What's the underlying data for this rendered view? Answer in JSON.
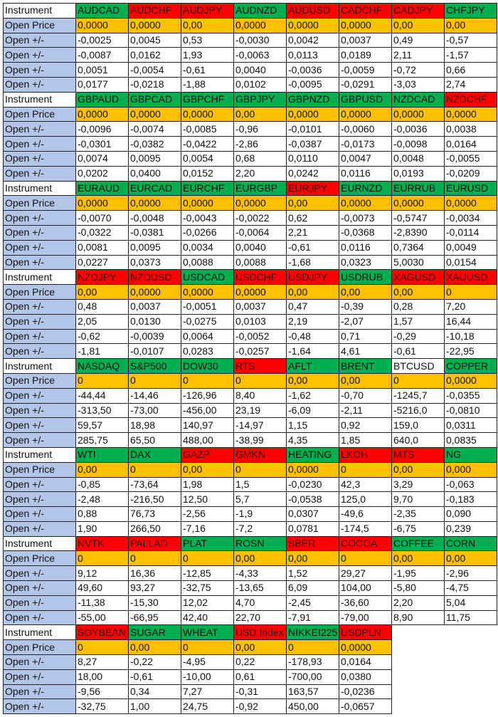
{
  "labels": {
    "instrument": "Instrument",
    "open_price": "Open Price",
    "change": "Open +/-"
  },
  "colors": {
    "green": "#00b050",
    "red": "#ff0000",
    "white": "#ffffff",
    "open_price_bg": "#ffc000",
    "label_bg": "#b4c6e7"
  },
  "sections": [
    {
      "instruments": [
        {
          "name": "AUDCAD",
          "status": "g",
          "open": "0,0000",
          "changes": [
            "-0,0025",
            "-0,0087",
            "0,0051",
            "0,0177"
          ]
        },
        {
          "name": "AUDCHF",
          "status": "r",
          "open": "0,0000",
          "changes": [
            "0,0045",
            "0,0162",
            "-0,0054",
            "-0,0218"
          ]
        },
        {
          "name": "AUDJPY",
          "status": "r",
          "open": "0,00",
          "changes": [
            "0,53",
            "1,93",
            "-0,61",
            "-1,88"
          ]
        },
        {
          "name": "AUDNZD",
          "status": "g",
          "open": "0,0000",
          "changes": [
            "-0,0030",
            "-0,0063",
            "0,0040",
            "0,0102"
          ]
        },
        {
          "name": "AUDUSD",
          "status": "r",
          "open": "0,0000",
          "changes": [
            "0,0042",
            "0,0113",
            "-0,0036",
            "-0,0095"
          ]
        },
        {
          "name": "CADCHF",
          "status": "r",
          "open": "0,0000",
          "changes": [
            "0,0037",
            "0,0189",
            "-0,0059",
            "-0,0291"
          ]
        },
        {
          "name": "CADJPY",
          "status": "r",
          "open": "0,00",
          "changes": [
            "0,49",
            "2,11",
            "-0,72",
            "-3,03"
          ]
        },
        {
          "name": "CHFJPY",
          "status": "g",
          "open": "0,00",
          "changes": [
            "-0,57",
            "-1,57",
            "0,66",
            "2,74"
          ]
        }
      ]
    },
    {
      "instruments": [
        {
          "name": "GBPAUD",
          "status": "g",
          "open": "0,0000",
          "changes": [
            "-0,0096",
            "-0,0301",
            "0,0074",
            "0,0202"
          ]
        },
        {
          "name": "GBPCAD",
          "status": "g",
          "open": "0,0000",
          "changes": [
            "-0,0074",
            "-0,0382",
            "0,0095",
            "0,0400"
          ]
        },
        {
          "name": "GBPCHF",
          "status": "g",
          "open": "0,0000",
          "changes": [
            "-0,0085",
            "-0,0422",
            "0,0054",
            "0,0152"
          ]
        },
        {
          "name": "GBPJPY",
          "status": "g",
          "open": "0,00",
          "changes": [
            "-0,96",
            "-2,86",
            "0,68",
            "2,20"
          ]
        },
        {
          "name": "GBPNZD",
          "status": "g",
          "open": "0,0000",
          "changes": [
            "-0,0101",
            "-0,0387",
            "0,0110",
            "0,0242"
          ]
        },
        {
          "name": "GBPUSD",
          "status": "g",
          "open": "0,0000",
          "changes": [
            "-0,0060",
            "-0,0173",
            "0,0047",
            "0,0116"
          ]
        },
        {
          "name": "NZDCAD",
          "status": "g",
          "open": "0,0000",
          "changes": [
            "-0,0036",
            "-0,0098",
            "0,0048",
            "0,0193"
          ]
        },
        {
          "name": "NZDCHF",
          "status": "r",
          "open": "0,0000",
          "changes": [
            "0,0038",
            "0,0164",
            "-0,0055",
            "-0,0209"
          ]
        }
      ]
    },
    {
      "instruments": [
        {
          "name": "EURAUD",
          "status": "g",
          "open": "0,0000",
          "changes": [
            "-0,0070",
            "-0,0322",
            "0,0081",
            "0,0227"
          ]
        },
        {
          "name": "EURCAD",
          "status": "g",
          "open": "0,0000",
          "changes": [
            "-0,0048",
            "-0,0381",
            "0,0095",
            "0,0373"
          ]
        },
        {
          "name": "EURCHF",
          "status": "g",
          "open": "0,0000",
          "changes": [
            "-0,0043",
            "-0,0266",
            "0,0034",
            "0,0088"
          ]
        },
        {
          "name": "EURGBP",
          "status": "g",
          "open": "0,0000",
          "changes": [
            "-0,0022",
            "-0,0064",
            "0,0040",
            "0,0088"
          ]
        },
        {
          "name": "EURJPY",
          "status": "r",
          "open": "0,00",
          "changes": [
            "0,62",
            "2,21",
            "-0,61",
            "-1,68"
          ]
        },
        {
          "name": "EURNZD",
          "status": "g",
          "open": "0,0000",
          "changes": [
            "-0,0073",
            "-0,0368",
            "0,0116",
            "0,0323"
          ]
        },
        {
          "name": "EURRUB",
          "status": "g",
          "open": "0,0000",
          "changes": [
            "-0,5747",
            "-2,8390",
            "0,7364",
            "5,0030"
          ]
        },
        {
          "name": "EURUSD",
          "status": "g",
          "open": "0,0000",
          "changes": [
            "-0,0034",
            "-0,0114",
            "0,0049",
            "0,0154"
          ]
        }
      ]
    },
    {
      "instruments": [
        {
          "name": "NZDJPY",
          "status": "r",
          "open": "0,00",
          "changes": [
            "0,48",
            "2,05",
            "-0,62",
            "-1,81"
          ]
        },
        {
          "name": "NZDUSD",
          "status": "r",
          "open": "0,0000",
          "changes": [
            "0,0037",
            "0,0130",
            "-0,0039",
            "-0,0107"
          ]
        },
        {
          "name": "USDCAD",
          "status": "g",
          "open": "0,0000",
          "changes": [
            "-0,0051",
            "-0,0275",
            "0,0064",
            "0,0283"
          ]
        },
        {
          "name": "USDCHF",
          "status": "r",
          "open": "0,0000",
          "changes": [
            "0,0037",
            "0,0103",
            "-0,0052",
            "-0,0257"
          ]
        },
        {
          "name": "USDJPY",
          "status": "r",
          "open": "0,00",
          "changes": [
            "0,47",
            "2,19",
            "-0,48",
            "-1,64"
          ]
        },
        {
          "name": "USDRUB",
          "status": "g",
          "open": "0,00",
          "changes": [
            "-0,39",
            "-2,07",
            "0,71",
            "4,61"
          ]
        },
        {
          "name": "XAGUSD",
          "status": "r",
          "open": "0,00",
          "changes": [
            "0,28",
            "1,57",
            "-0,29",
            "-0,61"
          ]
        },
        {
          "name": "XAUUSD",
          "status": "r",
          "open": "0",
          "changes": [
            "7,20",
            "16,44",
            "-10,18",
            "-22,95"
          ]
        }
      ]
    },
    {
      "instruments": [
        {
          "name": "NASDAQ",
          "status": "g",
          "open": "0",
          "changes": [
            "-44,44",
            "-313,50",
            "59,57",
            "285,75"
          ]
        },
        {
          "name": "S&P500",
          "status": "g",
          "open": "0",
          "changes": [
            "-14,46",
            "-73,00",
            "18,98",
            "65,50"
          ]
        },
        {
          "name": "DOW30",
          "status": "g",
          "open": "0",
          "changes": [
            "-126,96",
            "-456,00",
            "140,97",
            "488,00"
          ]
        },
        {
          "name": "RTS",
          "status": "r",
          "open": "0",
          "changes": [
            "8,40",
            "23,19",
            "-14,97",
            "-38,99"
          ]
        },
        {
          "name": "AFLT",
          "status": "g",
          "open": "0,00",
          "changes": [
            "-1,62",
            "-6,09",
            "1,15",
            "4,35"
          ]
        },
        {
          "name": "BRENT",
          "status": "g",
          "open": "0,00",
          "changes": [
            "-0,70",
            "-2,11",
            "0,92",
            "1,85"
          ]
        },
        {
          "name": "BTCUSD",
          "status": "w",
          "open": "0",
          "changes": [
            "-1245,7",
            "-5216,0",
            "159,0",
            "640,0"
          ]
        },
        {
          "name": "COPPER",
          "status": "g",
          "open": "0,0000",
          "changes": [
            "-0,0355",
            "-0,0810",
            "0,0311",
            "0,0835"
          ]
        }
      ]
    },
    {
      "instruments": [
        {
          "name": "WTI",
          "status": "g",
          "open": "0,00",
          "changes": [
            "-0,85",
            "-2,48",
            "0,88",
            "1,90"
          ]
        },
        {
          "name": "DAX",
          "status": "g",
          "open": "0",
          "changes": [
            "-73,64",
            "-216,50",
            "76,73",
            "266,50"
          ]
        },
        {
          "name": "GAZP",
          "status": "r",
          "open": "0,00",
          "changes": [
            "1,98",
            "12,50",
            "-2,56",
            "-7,16"
          ]
        },
        {
          "name": "GMKN",
          "status": "r",
          "open": "0",
          "changes": [
            "1,5",
            "5,7",
            "-1,9",
            "-7,2"
          ]
        },
        {
          "name": "HEATING",
          "status": "g",
          "open": "0,0000",
          "changes": [
            "-0,0230",
            "-0,0538",
            "0,0307",
            "0,0781"
          ]
        },
        {
          "name": "LKOH",
          "status": "r",
          "open": "0",
          "changes": [
            "42,3",
            "125,0",
            "-49,6",
            "-174,5"
          ]
        },
        {
          "name": "MTS",
          "status": "r",
          "open": "0,00",
          "changes": [
            "3,29",
            "9,70",
            "-2,35",
            "-6,75"
          ]
        },
        {
          "name": "NG",
          "status": "g",
          "open": "0,000",
          "changes": [
            "-0,063",
            "-0,183",
            "0,090",
            "0,239"
          ]
        }
      ]
    },
    {
      "instruments": [
        {
          "name": "NVTK",
          "status": "r",
          "open": "0",
          "changes": [
            "9,12",
            "49,60",
            "-11,38",
            "-55,00"
          ]
        },
        {
          "name": "PALLAD",
          "status": "r",
          "open": "0",
          "changes": [
            "16,36",
            "93,27",
            "-15,30",
            "-66,95"
          ]
        },
        {
          "name": "PLAT",
          "status": "g",
          "open": "0",
          "changes": [
            "-12,85",
            "-32,75",
            "12,02",
            "42,40"
          ]
        },
        {
          "name": "ROSN",
          "status": "g",
          "open": "0,00",
          "changes": [
            "-4,33",
            "-13,65",
            "4,70",
            "22,70"
          ]
        },
        {
          "name": "SBER",
          "status": "r",
          "open": "0,00",
          "changes": [
            "1,52",
            "6,09",
            "-2,45",
            "-7,91"
          ]
        },
        {
          "name": "COCOA",
          "status": "r",
          "open": "0",
          "changes": [
            "29,27",
            "104,00",
            "-36,60",
            "-79,00"
          ]
        },
        {
          "name": "COFFEE",
          "status": "g",
          "open": "0,00",
          "changes": [
            "-1,95",
            "-5,80",
            "2,20",
            "8,90"
          ]
        },
        {
          "name": "CORN",
          "status": "g",
          "open": "0,00",
          "changes": [
            "-2,96",
            "-4,75",
            "5,04",
            "11,75"
          ]
        }
      ]
    },
    {
      "instruments": [
        {
          "name": "SOYBEAN",
          "status": "r",
          "open": "0",
          "changes": [
            "8,27",
            "18,00",
            "-9,56",
            "-32,75"
          ]
        },
        {
          "name": "SUGAR",
          "status": "g",
          "open": "0,00",
          "changes": [
            "-0,22",
            "-0,61",
            "0,34",
            "1,00"
          ]
        },
        {
          "name": "WHEAT",
          "status": "g",
          "open": "0",
          "changes": [
            "-4,95",
            "-10,00",
            "7,27",
            "24,75"
          ]
        },
        {
          "name": "USD Index",
          "status": "r",
          "open": "0,00",
          "changes": [
            "0,22",
            "0,61",
            "-0,31",
            "-0,92"
          ]
        },
        {
          "name": "NIKKEI225",
          "status": "g",
          "open": "0",
          "changes": [
            "-178,93",
            "-700,00",
            "163,57",
            "450,00"
          ]
        },
        {
          "name": "USDPLN",
          "status": "r",
          "open": "0,0000",
          "changes": [
            "0,0164",
            "0,0380",
            "-0,0236",
            "-0,0657"
          ]
        }
      ]
    }
  ]
}
